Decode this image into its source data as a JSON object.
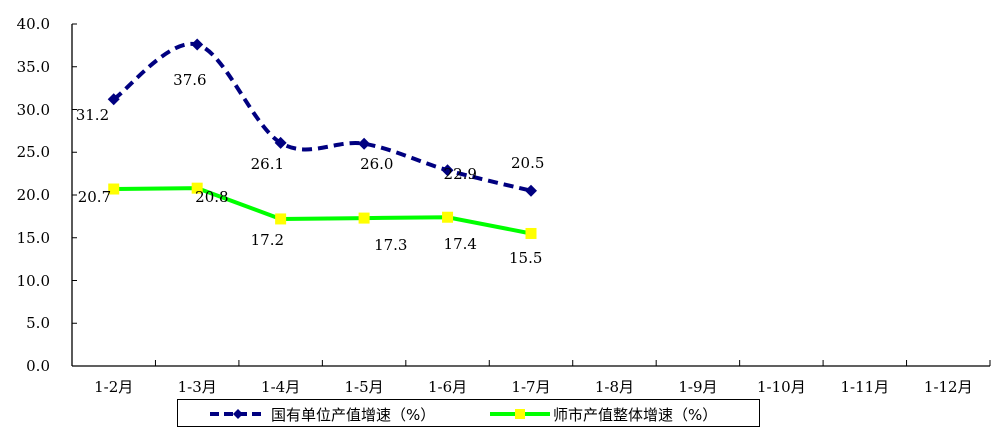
{
  "chart_data": {
    "type": "line",
    "title": "",
    "xlabel": "",
    "ylabel": "",
    "ylim": [
      0,
      40
    ],
    "yticks": [
      "0.0",
      "5.0",
      "10.0",
      "15.0",
      "20.0",
      "25.0",
      "30.0",
      "35.0",
      "40.0"
    ],
    "categories": [
      "1-2月",
      "1-3月",
      "1-4月",
      "1-5月",
      "1-6月",
      "1-7月",
      "1-8月",
      "1-9月",
      "1-10月",
      "1-11月",
      "1-12月"
    ],
    "grid": false,
    "legend_position": "bottom",
    "series": [
      {
        "name": "国有单位产值增速（%）",
        "color": "#000080",
        "style": "dashed-smooth",
        "marker": "diamond",
        "values": [
          31.2,
          37.6,
          26.1,
          26.0,
          22.9,
          20.5,
          null,
          null,
          null,
          null,
          null
        ],
        "labels": [
          "31.2",
          "37.6",
          "26.1",
          "26.0",
          "22.9",
          "20.5"
        ]
      },
      {
        "name": "师市产值整体增速（%）",
        "color": "#00FF00",
        "marker_color": "#FFFF00",
        "style": "solid",
        "marker": "square",
        "values": [
          20.7,
          20.8,
          17.2,
          17.3,
          17.4,
          15.5,
          null,
          null,
          null,
          null,
          null
        ],
        "labels": [
          "20.7",
          "20.8",
          "17.2",
          "17.3",
          "17.4",
          "15.5"
        ]
      }
    ]
  },
  "legend": {
    "items": [
      {
        "label": "国有单位产值增速（%）"
      },
      {
        "label": "师市产值整体增速（%）"
      }
    ]
  }
}
